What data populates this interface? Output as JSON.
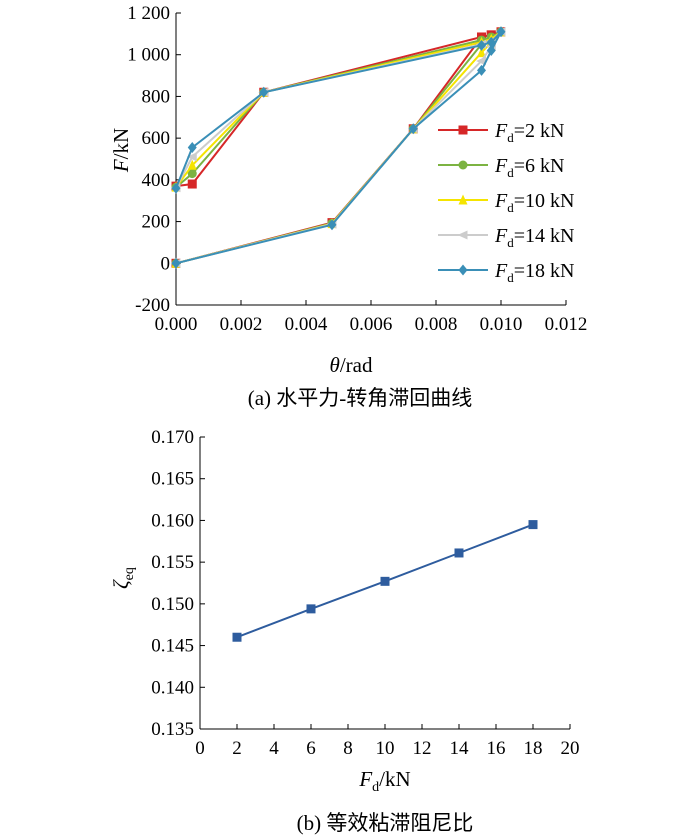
{
  "figure": {
    "caption_a": "(a) 水平力-转角滞回曲线",
    "caption_b": "(b) 等效粘滞阻尼比"
  },
  "chart_data": [
    {
      "type": "line",
      "xlabel": {
        "var": "θ",
        "unit": "/rad"
      },
      "ylabel": {
        "var": "F",
        "unit": "/kN"
      },
      "xlim": [
        0,
        0.012
      ],
      "ylim": [
        -200,
        1200
      ],
      "xticks": [
        "0.000",
        "0.002",
        "0.004",
        "0.006",
        "0.008",
        "0.010",
        "0.012"
      ],
      "yticks": [
        "-200",
        "0",
        "200",
        "400",
        "600",
        "800",
        "1 000",
        "1 200"
      ],
      "ytick_values": [
        -200,
        0,
        200,
        400,
        600,
        800,
        1000,
        1200
      ],
      "grid": false,
      "legend_position": "right",
      "series": [
        {
          "name": "2 kN",
          "label_var": "F",
          "label_sub": "d",
          "label_eq": "=",
          "color": "#d62728",
          "marker": "square",
          "points": [
            [
              0.0,
              0
            ],
            [
              0.0048,
              195
            ],
            [
              0.0073,
              645
            ],
            [
              0.0094,
              1085
            ],
            [
              0.0097,
              1095
            ],
            [
              0.01,
              1110
            ],
            [
              0.0097,
              1095
            ],
            [
              0.0094,
              1085
            ],
            [
              0.0027,
              820
            ],
            [
              0.0005,
              380
            ],
            [
              0.0,
              370
            ]
          ]
        },
        {
          "name": "6 kN",
          "label_var": "F",
          "label_sub": "d",
          "label_eq": "=",
          "color": "#7cb342",
          "marker": "circle",
          "points": [
            [
              0.0,
              0
            ],
            [
              0.0048,
              192
            ],
            [
              0.0073,
              645
            ],
            [
              0.0094,
              1050
            ],
            [
              0.0097,
              1080
            ],
            [
              0.01,
              1110
            ],
            [
              0.0097,
              1085
            ],
            [
              0.0094,
              1070
            ],
            [
              0.0027,
              820
            ],
            [
              0.0005,
              430
            ],
            [
              0.0,
              365
            ]
          ]
        },
        {
          "name": "10 kN",
          "label_var": "F",
          "label_sub": "d",
          "label_eq": "=",
          "color": "#f5e400",
          "marker": "triangle",
          "points": [
            [
              0.0,
              0
            ],
            [
              0.0048,
              190
            ],
            [
              0.0073,
              645
            ],
            [
              0.0094,
              1010
            ],
            [
              0.0097,
              1060
            ],
            [
              0.01,
              1110
            ],
            [
              0.0097,
              1075
            ],
            [
              0.0094,
              1060
            ],
            [
              0.0027,
              820
            ],
            [
              0.0005,
              470
            ],
            [
              0.0,
              365
            ]
          ]
        },
        {
          "name": "14 kN",
          "label_var": "F",
          "label_sub": "d",
          "label_eq": "=",
          "color": "#cccccc",
          "marker": "triangle-left",
          "points": [
            [
              0.0,
              0
            ],
            [
              0.0048,
              188
            ],
            [
              0.0073,
              645
            ],
            [
              0.0094,
              970
            ],
            [
              0.0097,
              1040
            ],
            [
              0.01,
              1110
            ],
            [
              0.0097,
              1065
            ],
            [
              0.0094,
              1050
            ],
            [
              0.0027,
              820
            ],
            [
              0.0005,
              510
            ],
            [
              0.0,
              362
            ]
          ]
        },
        {
          "name": "18 kN",
          "label_var": "F",
          "label_sub": "d",
          "label_eq": "=",
          "color": "#3a8fb7",
          "marker": "diamond",
          "points": [
            [
              0.0,
              0
            ],
            [
              0.0048,
              185
            ],
            [
              0.0073,
              645
            ],
            [
              0.0094,
              925
            ],
            [
              0.0097,
              1020
            ],
            [
              0.01,
              1110
            ],
            [
              0.0097,
              1060
            ],
            [
              0.0094,
              1045
            ],
            [
              0.0027,
              820
            ],
            [
              0.0005,
              555
            ],
            [
              0.0,
              360
            ]
          ]
        }
      ]
    },
    {
      "type": "line",
      "xlabel": {
        "var": "F",
        "sub": "d",
        "unit": "/kN"
      },
      "ylabel": {
        "var": "ζ",
        "sub": "eq"
      },
      "xlim": [
        0,
        20
      ],
      "ylim": [
        0.135,
        0.17
      ],
      "xticks": [
        "0",
        "2",
        "4",
        "6",
        "8",
        "10",
        "12",
        "14",
        "16",
        "18",
        "20"
      ],
      "xtick_values": [
        0,
        2,
        4,
        6,
        8,
        10,
        12,
        14,
        16,
        18,
        20
      ],
      "yticks": [
        "0.135",
        "0.140",
        "0.145",
        "0.150",
        "0.155",
        "0.160",
        "0.165",
        "0.170"
      ],
      "ytick_values": [
        0.135,
        0.14,
        0.145,
        0.15,
        0.155,
        0.16,
        0.165,
        0.17
      ],
      "grid": false,
      "series": [
        {
          "color": "#2e5c9e",
          "marker": "square",
          "x": [
            2,
            6,
            10,
            14,
            18
          ],
          "values": [
            0.146,
            0.1494,
            0.1527,
            0.1561,
            0.1595
          ]
        }
      ]
    }
  ]
}
